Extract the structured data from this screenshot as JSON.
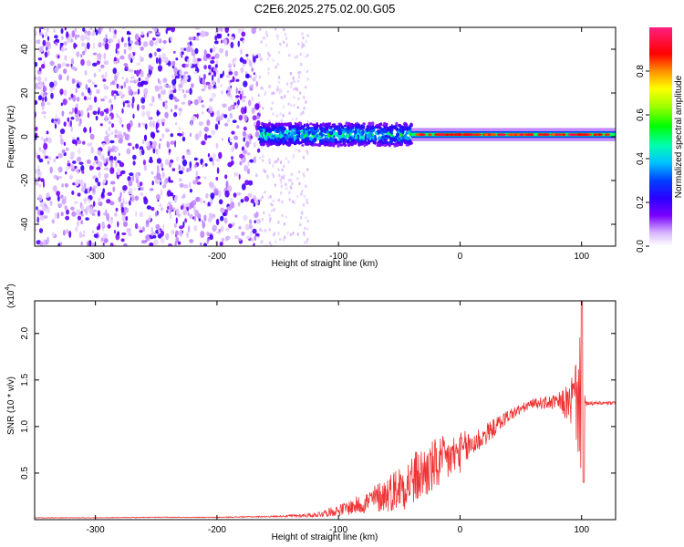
{
  "title": "C2E6.2025.275.02.00.G05",
  "chart_data": [
    {
      "type": "heatmap",
      "title": "C2E6.2025.275.02.00.G05",
      "xlabel": "Height of straight line (km)",
      "ylabel": "Frequency (Hz)",
      "xlim": [
        -350,
        128
      ],
      "ylim": [
        -50,
        50
      ],
      "x_ticks": [
        -300,
        -200,
        -100,
        0,
        100
      ],
      "x_tick_labels": [
        "-300",
        "-200",
        "-100",
        "0",
        "100"
      ],
      "y_ticks": [
        -40,
        -20,
        0,
        20,
        40
      ],
      "y_tick_labels": [
        "-40",
        "-20",
        "0",
        "20",
        "40"
      ],
      "grid": false,
      "colorbar": {
        "label": "Normalized spectral amplitude",
        "range": [
          0,
          1
        ],
        "ticks": [
          0.0,
          0.2,
          0.4,
          0.6,
          0.8
        ],
        "tick_labels": [
          "0.0",
          "0.2",
          "0.4",
          "0.6",
          "0.8"
        ]
      },
      "description_regions": [
        {
          "x_range": [
            -350,
            -165
          ],
          "content": "scattered noise across full frequency band",
          "amplitude": 0.1
        },
        {
          "x_range": [
            -165,
            -125
          ],
          "content": "noise band fading out",
          "amplitude": 0.05
        },
        {
          "x_range": [
            -165,
            -40
          ],
          "content": "signal band near 0 Hz with spread -5 to 5 Hz",
          "amplitude": 0.35
        },
        {
          "x_range": [
            -40,
            128
          ],
          "content": "narrow signal line near 1 Hz",
          "amplitude": 0.9
        }
      ]
    },
    {
      "type": "line",
      "xlabel": "Height of straight line (km)",
      "ylabel": "SNR (10 * v/v)",
      "y_scale_label": "(x10",
      "y_scale_exp": "4",
      "xlim": [
        -350,
        128
      ],
      "ylim": [
        0,
        23500
      ],
      "x_ticks": [
        -300,
        -200,
        -100,
        0,
        100
      ],
      "x_tick_labels": [
        "-300",
        "-200",
        "-100",
        "0",
        "100"
      ],
      "y_ticks": [
        5000,
        10000,
        15000,
        20000
      ],
      "y_tick_labels": [
        "0.5",
        "1.0",
        "1.5",
        "2.0"
      ],
      "series": [
        {
          "name": "SNR",
          "color": "#ee3333",
          "x": [
            -350,
            -300,
            -250,
            -200,
            -150,
            -120,
            -100,
            -80,
            -60,
            -40,
            -20,
            0,
            20,
            40,
            60,
            80,
            90,
            95,
            100,
            103,
            110,
            128
          ],
          "values": [
            200,
            200,
            250,
            250,
            350,
            500,
            1000,
            1700,
            2800,
            4200,
            5800,
            7200,
            9000,
            11200,
            12500,
            12600,
            12500,
            13000,
            12400,
            12400,
            12500,
            12500
          ],
          "noise_amp": [
            30,
            30,
            40,
            40,
            80,
            250,
            600,
            1100,
            2000,
            3000,
            3000,
            2200,
            1200,
            700,
            500,
            900,
            2200,
            4500,
            8000,
            300,
            200,
            200
          ]
        }
      ]
    }
  ]
}
